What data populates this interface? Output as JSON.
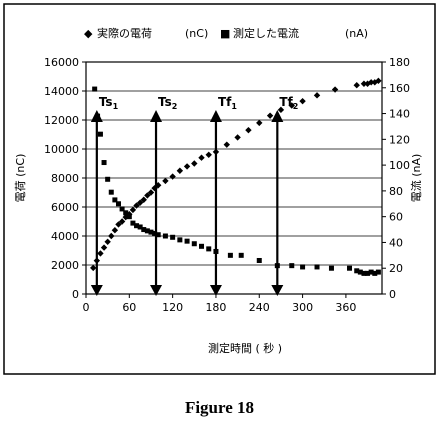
{
  "chart_data": {
    "type": "scatter",
    "legend": {
      "placement": "top",
      "entries": [
        {
          "marker": "◆",
          "label": "実際の電荷",
          "unit": "(nC)"
        },
        {
          "marker": "■",
          "label": "測定した電流",
          "unit": "(nA)"
        }
      ]
    },
    "xlabel": "測定時間 ( 秒 )",
    "ylabel_left": "電荷 (nC)",
    "ylabel_right": "電流 (nA)",
    "x_ticks": [
      "0",
      "60",
      "120",
      "180",
      "240",
      "300",
      "360"
    ],
    "x_range": [
      0,
      410
    ],
    "y_left_ticks": [
      "0",
      "2000",
      "4000",
      "6000",
      "8000",
      "10000",
      "12000",
      "14000",
      "16000"
    ],
    "y_left_range": [
      0,
      16000
    ],
    "y_right_ticks": [
      "0",
      "20",
      "40",
      "60",
      "80",
      "100",
      "120",
      "140",
      "160",
      "180"
    ],
    "y_right_range": [
      0,
      180
    ],
    "grid": {
      "horizontal": true,
      "vertical": false
    },
    "markers": [
      {
        "label": "Ts",
        "sub": "1",
        "x": 15
      },
      {
        "label": "Ts",
        "sub": "2",
        "x": 97
      },
      {
        "label": "Tf",
        "sub": "1",
        "x": 180
      },
      {
        "label": "Tf",
        "sub": "2",
        "x": 265
      }
    ],
    "series": [
      {
        "name": "実際の電荷",
        "axis": "left",
        "marker": "diamond",
        "x": [
          10,
          15,
          20,
          25,
          30,
          35,
          40,
          45,
          50,
          55,
          60,
          65,
          70,
          75,
          80,
          85,
          90,
          95,
          100,
          110,
          120,
          130,
          140,
          150,
          160,
          170,
          180,
          195,
          210,
          225,
          240,
          255,
          270,
          285,
          300,
          320,
          345,
          375,
          385,
          390,
          395,
          400,
          405
        ],
        "y": [
          1800,
          2300,
          2800,
          3200,
          3600,
          4000,
          4400,
          4800,
          5000,
          5300,
          5500,
          5800,
          6100,
          6300,
          6500,
          6800,
          7000,
          7300,
          7500,
          7800,
          8100,
          8500,
          8800,
          9000,
          9400,
          9600,
          9800,
          10300,
          10800,
          11300,
          11800,
          12300,
          12700,
          13000,
          13300,
          13700,
          14100,
          14400,
          14500,
          14500,
          14600,
          14600,
          14700
        ]
      },
      {
        "name": "測定した電流",
        "axis": "right",
        "marker": "square",
        "x": [
          12,
          16,
          20,
          25,
          30,
          35,
          40,
          45,
          50,
          55,
          60,
          65,
          70,
          75,
          80,
          85,
          90,
          95,
          100,
          110,
          120,
          130,
          140,
          150,
          160,
          170,
          180,
          200,
          215,
          240,
          265,
          285,
          300,
          320,
          340,
          365,
          375,
          380,
          385,
          390,
          395,
          400,
          405
        ],
        "y": [
          159,
          138,
          124,
          102,
          89,
          79,
          73,
          70,
          66,
          63,
          60,
          55,
          53,
          52,
          50,
          49,
          48,
          47,
          46,
          45,
          44,
          42,
          41,
          39,
          37,
          35,
          33,
          30,
          30,
          26,
          22,
          22,
          21,
          21,
          20,
          20,
          18,
          17,
          16,
          16,
          17,
          16,
          17
        ]
      }
    ]
  },
  "caption": "Figure 18"
}
